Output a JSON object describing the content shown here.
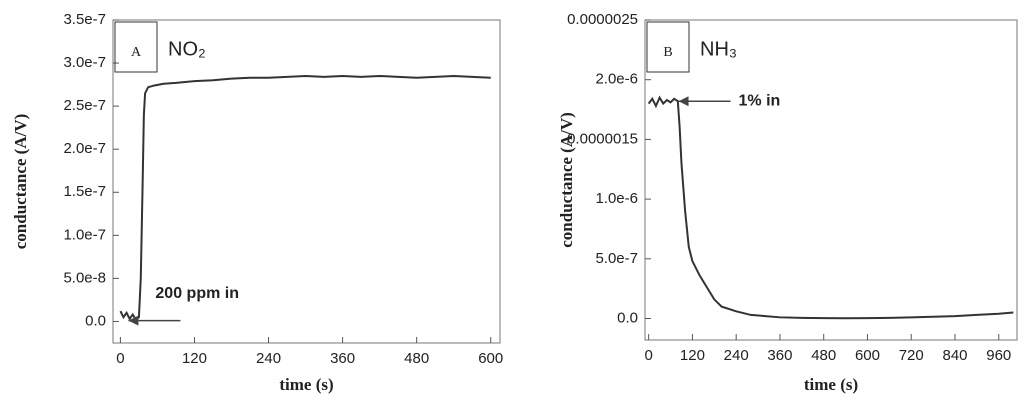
{
  "chart_data": [
    {
      "type": "line",
      "panel": "A",
      "title": "NO₂",
      "x_label": "time (s)",
      "y_label": "conductance (A/V)",
      "annotation": "200 ppm in",
      "annotation_x": 0,
      "annotation_y": 1e-09,
      "xlim": [
        -12,
        615
      ],
      "ylim": [
        -2.5e-08,
        3.5e-07
      ],
      "xticks": [
        0,
        120,
        240,
        360,
        480,
        600
      ],
      "yticks": [
        {
          "value": 0,
          "label": "0.0"
        },
        {
          "value": 5e-08,
          "label": "5.0e-8"
        },
        {
          "value": 1e-07,
          "label": "1.0e-7"
        },
        1.5e-07,
        {
          "value": 2e-07,
          "label": "2.0e-7"
        },
        2.5e-07,
        {
          "value": 3e-07,
          "label": "3.0e-7"
        },
        3.5e-07
      ],
      "series": [
        {
          "name": "NO₂",
          "color": "#333333",
          "x": [
            0,
            5,
            10,
            15,
            20,
            25,
            30,
            33,
            36,
            38,
            40,
            45,
            55,
            70,
            90,
            120,
            150,
            180,
            210,
            240,
            270,
            300,
            330,
            360,
            390,
            420,
            450,
            480,
            510,
            540,
            570,
            600
          ],
          "values": [
            1.2e-08,
            5e-09,
            1e-08,
            3e-09,
            8e-09,
            2e-09,
            5e-09,
            5e-08,
            1.6e-07,
            2.4e-07,
            2.65e-07,
            2.72e-07,
            2.74e-07,
            2.76e-07,
            2.77e-07,
            2.79e-07,
            2.8e-07,
            2.82e-07,
            2.83e-07,
            2.83e-07,
            2.84e-07,
            2.85e-07,
            2.84e-07,
            2.85e-07,
            2.84e-07,
            2.85e-07,
            2.84e-07,
            2.83e-07,
            2.84e-07,
            2.85e-07,
            2.84e-07,
            2.83e-07
          ]
        }
      ]
    },
    {
      "type": "line",
      "panel": "B",
      "title": "NH₃",
      "x_label": "time (s)",
      "y_label": "conductance (A/V)",
      "annotation": "1% in",
      "annotation_x": 60,
      "annotation_y": 1.82e-06,
      "xlim": [
        -10,
        1010
      ],
      "ylim": [
        -1.8e-07,
        2.5e-06
      ],
      "xticks": [
        0,
        120,
        240,
        360,
        480,
        600,
        720,
        840,
        960
      ],
      "yticks": [
        {
          "value": 0,
          "label": "0.0"
        },
        {
          "value": 5e-07,
          "label": "5.0e-7"
        },
        {
          "value": 1e-06,
          "label": "1.0e-6"
        },
        1.5e-06,
        {
          "value": 2e-06,
          "label": "2.0e-6"
        },
        2.5e-06
      ],
      "series": [
        {
          "name": "NH₃",
          "color": "#333333",
          "x": [
            0,
            10,
            20,
            30,
            40,
            50,
            60,
            70,
            80,
            85,
            90,
            95,
            100,
            110,
            120,
            140,
            160,
            180,
            200,
            240,
            280,
            320,
            360,
            420,
            480,
            540,
            600,
            660,
            720,
            780,
            840,
            900,
            960,
            1000
          ],
          "values": [
            1.8e-06,
            1.84e-06,
            1.78e-06,
            1.85e-06,
            1.8e-06,
            1.83e-06,
            1.81e-06,
            1.84e-06,
            1.82e-06,
            1.6e-06,
            1.3e-06,
            1.1e-06,
            9e-07,
            6e-07,
            4.8e-07,
            3.6e-07,
            2.6e-07,
            1.6e-07,
            1e-07,
            6e-08,
            3e-08,
            2e-08,
            1e-08,
            5e-09,
            3e-09,
            2e-09,
            3e-09,
            5e-09,
            1e-08,
            1.5e-08,
            2e-08,
            3e-08,
            4e-08,
            5e-08
          ]
        }
      ]
    }
  ]
}
